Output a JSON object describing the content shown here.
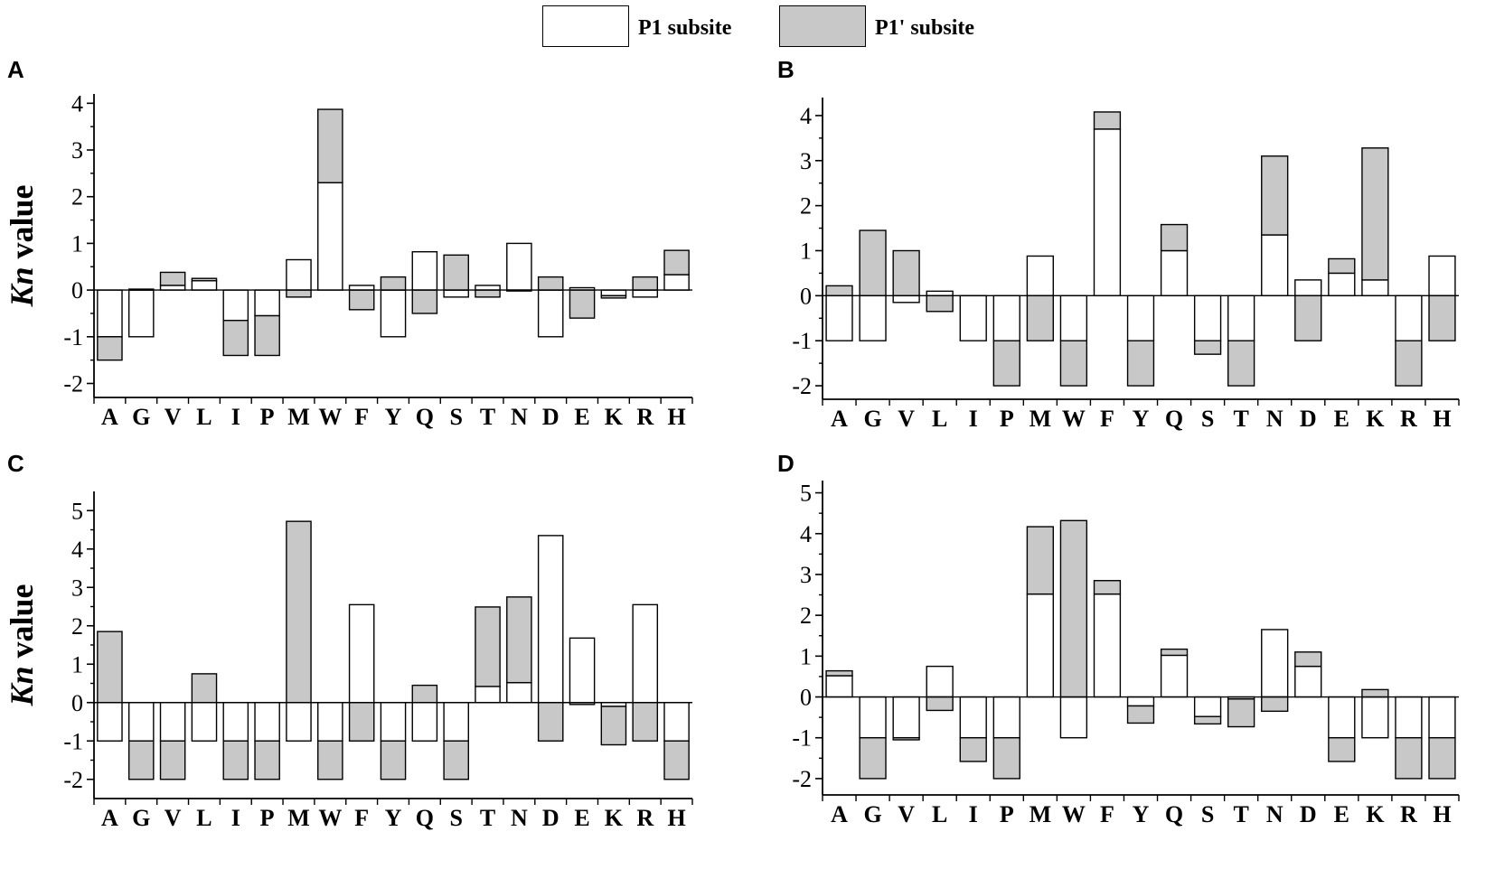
{
  "legend": {
    "p1_label": "P1 subsite",
    "p1prime_label": "P1' subsite",
    "p1_color": "#ffffff",
    "p1prime_color": "#c8c8c8"
  },
  "chart_data": [
    {
      "panel": "A",
      "type": "bar",
      "stacked": true,
      "ylabel_italic": "Kn",
      "ylabel_rest": " value",
      "ylim": [
        -2.3,
        4.2
      ],
      "yticks": [
        -2,
        -1,
        0,
        1,
        2,
        3,
        4
      ],
      "categories": [
        "A",
        "G",
        "V",
        "L",
        "I",
        "P",
        "M",
        "W",
        "F",
        "Y",
        "Q",
        "S",
        "T",
        "N",
        "D",
        "E",
        "K",
        "R",
        "H"
      ],
      "series": [
        {
          "name": "P1 subsite",
          "values": [
            -1,
            -1,
            0.1,
            0.2,
            -0.65,
            -0.55,
            0.65,
            2.3,
            0.1,
            -1,
            0.82,
            -0.15,
            0.1,
            1,
            -1,
            0.05,
            -0.12,
            -0.15,
            0.33
          ]
        },
        {
          "name": "P1' subsite",
          "values": [
            -0.5,
            0.02,
            0.28,
            0.05,
            -0.75,
            -0.85,
            -0.15,
            1.57,
            -0.42,
            0.28,
            -0.5,
            0.75,
            -0.15,
            -0.02,
            0.28,
            -0.6,
            -0.05,
            0.28,
            0.52
          ]
        }
      ]
    },
    {
      "panel": "B",
      "type": "bar",
      "stacked": true,
      "ylabel_italic": "Kn",
      "ylabel_rest": " value",
      "ylim": [
        -2.3,
        4.4
      ],
      "yticks": [
        -2,
        -1,
        0,
        1,
        2,
        3,
        4
      ],
      "categories": [
        "A",
        "G",
        "V",
        "L",
        "I",
        "P",
        "M",
        "W",
        "F",
        "Y",
        "Q",
        "S",
        "T",
        "N",
        "D",
        "E",
        "K",
        "R",
        "H"
      ],
      "series": [
        {
          "name": "P1 subsite",
          "values": [
            -1,
            -1,
            -0.15,
            0.1,
            -1,
            -1,
            0.88,
            -1,
            3.7,
            -1,
            1,
            -1,
            -1,
            1.35,
            0.35,
            0.5,
            0.35,
            -1,
            0.88
          ]
        },
        {
          "name": "P1' subsite",
          "values": [
            0.22,
            1.45,
            1,
            -0.35,
            0,
            -1,
            -1,
            -1,
            0.38,
            -1,
            0.58,
            -0.3,
            -1,
            1.75,
            -1,
            0.32,
            2.93,
            -1,
            -1
          ]
        }
      ]
    },
    {
      "panel": "C",
      "type": "bar",
      "stacked": true,
      "ylabel_italic": "Kn",
      "ylabel_rest": " value",
      "ylim": [
        -2.5,
        5.5
      ],
      "yticks": [
        -2,
        -1,
        0,
        1,
        2,
        3,
        4,
        5
      ],
      "categories": [
        "A",
        "G",
        "V",
        "L",
        "I",
        "P",
        "M",
        "W",
        "F",
        "Y",
        "Q",
        "S",
        "T",
        "N",
        "D",
        "E",
        "K",
        "R",
        "H"
      ],
      "series": [
        {
          "name": "P1 subsite",
          "values": [
            -1,
            -1,
            -1,
            -1,
            -1,
            -1,
            -1,
            -1,
            2.55,
            -1,
            -1,
            -1,
            0.42,
            0.52,
            4.35,
            1.68,
            -0.1,
            2.55,
            -1
          ]
        },
        {
          "name": "P1' subsite",
          "values": [
            1.85,
            -1,
            -1,
            0.75,
            -1,
            -1,
            4.72,
            -1,
            -1,
            -1,
            0.45,
            -1,
            2.07,
            2.23,
            -1,
            -0.05,
            -1,
            -1,
            -1
          ]
        }
      ]
    },
    {
      "panel": "D",
      "type": "bar",
      "stacked": true,
      "ylabel_italic": "Kn",
      "ylabel_rest": " value",
      "ylim": [
        -2.4,
        5.3
      ],
      "yticks": [
        -2,
        -1,
        0,
        1,
        2,
        3,
        4,
        5
      ],
      "categories": [
        "A",
        "G",
        "V",
        "L",
        "I",
        "P",
        "M",
        "W",
        "F",
        "Y",
        "Q",
        "S",
        "T",
        "N",
        "D",
        "E",
        "K",
        "R",
        "H"
      ],
      "series": [
        {
          "name": "P1 subsite",
          "values": [
            0.52,
            -1,
            -1,
            0.75,
            -1,
            -1,
            2.52,
            -1,
            2.52,
            -0.22,
            1.02,
            -0.48,
            -0.05,
            1.65,
            0.75,
            -1,
            -1,
            -1,
            -1
          ]
        },
        {
          "name": "P1' subsite",
          "values": [
            0.12,
            -1,
            -0.05,
            -0.33,
            -0.58,
            -1,
            1.65,
            4.32,
            0.33,
            -0.42,
            0.15,
            -0.18,
            -0.68,
            -0.35,
            0.35,
            -0.58,
            0.18,
            -1,
            -1
          ]
        }
      ]
    }
  ]
}
